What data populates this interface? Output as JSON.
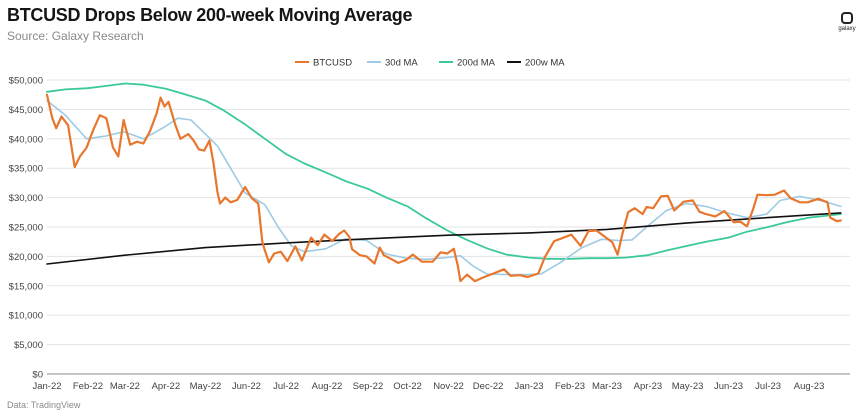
{
  "header": {
    "title": "BTCUSD Drops Below 200-week Moving Average",
    "subtitle": "Source: Galaxy Research",
    "logo_text": "galaxy"
  },
  "footer": {
    "source": "Data: TradingView"
  },
  "chart_data": {
    "type": "line",
    "title": "BTCUSD Drops Below 200-week Moving Average",
    "xlabel": "",
    "ylabel": "",
    "ylim": [
      0,
      50000
    ],
    "grid": true,
    "legend_placement": "top-center",
    "x_tick_labels": [
      "Jan-22",
      "Feb-22",
      "Mar-22",
      "Apr-22",
      "May-22",
      "Jun-22",
      "Jul-22",
      "Aug-22",
      "Sep-22",
      "Oct-22",
      "Nov-22",
      "Dec-22",
      "Jan-23",
      "Feb-23",
      "Mar-23",
      "Apr-23",
      "May-23",
      "Jun-23",
      "Jul-23",
      "Aug-23"
    ],
    "y_tick_labels": [
      "$0",
      "$5,000",
      "$10,000",
      "$15,000",
      "$20,000",
      "$25,000",
      "$30,000",
      "$35,000",
      "$40,000",
      "$45,000",
      "$50,000"
    ],
    "y_ticks": [
      0,
      5000,
      10000,
      15000,
      20000,
      25000,
      30000,
      35000,
      40000,
      45000,
      50000
    ],
    "series": [
      {
        "name": "BTCUSD",
        "color": "#e8762d",
        "width": 2.2,
        "points": [
          [
            "2022-01-01",
            47500
          ],
          [
            "2022-01-05",
            43500
          ],
          [
            "2022-01-08",
            41800
          ],
          [
            "2022-01-12",
            43800
          ],
          [
            "2022-01-17",
            42300
          ],
          [
            "2022-01-22",
            35200
          ],
          [
            "2022-01-26",
            37000
          ],
          [
            "2022-01-31",
            38500
          ],
          [
            "2022-02-05",
            41500
          ],
          [
            "2022-02-10",
            44000
          ],
          [
            "2022-02-15",
            43500
          ],
          [
            "2022-02-20",
            38500
          ],
          [
            "2022-02-24",
            37000
          ],
          [
            "2022-02-28",
            43200
          ],
          [
            "2022-03-05",
            39000
          ],
          [
            "2022-03-10",
            39500
          ],
          [
            "2022-03-15",
            39200
          ],
          [
            "2022-03-20",
            41300
          ],
          [
            "2022-03-25",
            44300
          ],
          [
            "2022-03-28",
            47000
          ],
          [
            "2022-03-31",
            45500
          ],
          [
            "2022-04-03",
            46300
          ],
          [
            "2022-04-08",
            42500
          ],
          [
            "2022-04-12",
            40000
          ],
          [
            "2022-04-18",
            40800
          ],
          [
            "2022-04-22",
            39700
          ],
          [
            "2022-04-26",
            38200
          ],
          [
            "2022-04-30",
            38000
          ],
          [
            "2022-05-04",
            39700
          ],
          [
            "2022-05-07",
            36000
          ],
          [
            "2022-05-10",
            31000
          ],
          [
            "2022-05-12",
            29000
          ],
          [
            "2022-05-16",
            30000
          ],
          [
            "2022-05-20",
            29200
          ],
          [
            "2022-05-25",
            29600
          ],
          [
            "2022-05-31",
            31800
          ],
          [
            "2022-06-05",
            29900
          ],
          [
            "2022-06-10",
            29000
          ],
          [
            "2022-06-13",
            22500
          ],
          [
            "2022-06-15",
            21000
          ],
          [
            "2022-06-18",
            19000
          ],
          [
            "2022-06-22",
            20500
          ],
          [
            "2022-06-27",
            20800
          ],
          [
            "2022-07-02",
            19200
          ],
          [
            "2022-07-08",
            21700
          ],
          [
            "2022-07-13",
            19300
          ],
          [
            "2022-07-20",
            23200
          ],
          [
            "2022-07-25",
            21900
          ],
          [
            "2022-07-30",
            23700
          ],
          [
            "2022-08-05",
            22600
          ],
          [
            "2022-08-10",
            23800
          ],
          [
            "2022-08-14",
            24400
          ],
          [
            "2022-08-18",
            23300
          ],
          [
            "2022-08-20",
            21200
          ],
          [
            "2022-08-26",
            20200
          ],
          [
            "2022-08-31",
            20000
          ],
          [
            "2022-09-06",
            18800
          ],
          [
            "2022-09-10",
            21500
          ],
          [
            "2022-09-13",
            20200
          ],
          [
            "2022-09-19",
            19500
          ],
          [
            "2022-09-24",
            18900
          ],
          [
            "2022-09-30",
            19400
          ],
          [
            "2022-10-05",
            20300
          ],
          [
            "2022-10-12",
            19100
          ],
          [
            "2022-10-20",
            19100
          ],
          [
            "2022-10-26",
            20700
          ],
          [
            "2022-10-31",
            20500
          ],
          [
            "2022-11-05",
            21300
          ],
          [
            "2022-11-08",
            18500
          ],
          [
            "2022-11-10",
            15800
          ],
          [
            "2022-11-15",
            16900
          ],
          [
            "2022-11-21",
            15800
          ],
          [
            "2022-11-27",
            16400
          ],
          [
            "2022-12-05",
            17100
          ],
          [
            "2022-12-13",
            17800
          ],
          [
            "2022-12-18",
            16700
          ],
          [
            "2022-12-25",
            16800
          ],
          [
            "2022-12-31",
            16500
          ],
          [
            "2023-01-08",
            17100
          ],
          [
            "2023-01-13",
            19900
          ],
          [
            "2023-01-20",
            22600
          ],
          [
            "2023-01-26",
            23100
          ],
          [
            "2023-02-02",
            23700
          ],
          [
            "2023-02-09",
            21800
          ],
          [
            "2023-02-15",
            24300
          ],
          [
            "2023-02-21",
            24400
          ],
          [
            "2023-02-27",
            23400
          ],
          [
            "2023-03-05",
            22400
          ],
          [
            "2023-03-09",
            20300
          ],
          [
            "2023-03-13",
            24100
          ],
          [
            "2023-03-17",
            27500
          ],
          [
            "2023-03-22",
            28200
          ],
          [
            "2023-03-28",
            27200
          ],
          [
            "2023-03-31",
            28400
          ],
          [
            "2023-04-05",
            28200
          ],
          [
            "2023-04-11",
            30200
          ],
          [
            "2023-04-16",
            30300
          ],
          [
            "2023-04-21",
            27800
          ],
          [
            "2023-04-28",
            29300
          ],
          [
            "2023-05-05",
            29500
          ],
          [
            "2023-05-10",
            27600
          ],
          [
            "2023-05-15",
            27200
          ],
          [
            "2023-05-22",
            26800
          ],
          [
            "2023-05-29",
            27700
          ],
          [
            "2023-06-05",
            25800
          ],
          [
            "2023-06-10",
            25900
          ],
          [
            "2023-06-15",
            25100
          ],
          [
            "2023-06-20",
            28300
          ],
          [
            "2023-06-23",
            30500
          ],
          [
            "2023-06-30",
            30400
          ],
          [
            "2023-07-06",
            30500
          ],
          [
            "2023-07-13",
            31200
          ],
          [
            "2023-07-18",
            29900
          ],
          [
            "2023-07-25",
            29200
          ],
          [
            "2023-07-31",
            29200
          ],
          [
            "2023-08-08",
            29800
          ],
          [
            "2023-08-15",
            29200
          ],
          [
            "2023-08-17",
            26600
          ],
          [
            "2023-08-22",
            26000
          ],
          [
            "2023-08-25",
            26100
          ]
        ]
      },
      {
        "name": "30d MA",
        "color": "#9ecbe4",
        "width": 1.6,
        "points": [
          [
            "2022-01-01",
            46500
          ],
          [
            "2022-01-15",
            44000
          ],
          [
            "2022-01-31",
            40000
          ],
          [
            "2022-02-15",
            40500
          ],
          [
            "2022-02-28",
            41200
          ],
          [
            "2022-03-15",
            40000
          ],
          [
            "2022-03-31",
            42000
          ],
          [
            "2022-04-10",
            43500
          ],
          [
            "2022-04-20",
            43200
          ],
          [
            "2022-04-30",
            41000
          ],
          [
            "2022-05-10",
            38800
          ],
          [
            "2022-05-20",
            35000
          ],
          [
            "2022-05-31",
            30800
          ],
          [
            "2022-06-15",
            28800
          ],
          [
            "2022-06-25",
            25000
          ],
          [
            "2022-07-05",
            21800
          ],
          [
            "2022-07-15",
            20800
          ],
          [
            "2022-07-31",
            21300
          ],
          [
            "2022-08-15",
            23000
          ],
          [
            "2022-08-31",
            22700
          ],
          [
            "2022-09-15",
            20400
          ],
          [
            "2022-09-30",
            19700
          ],
          [
            "2022-10-15",
            19500
          ],
          [
            "2022-10-31",
            19800
          ],
          [
            "2022-11-10",
            20100
          ],
          [
            "2022-11-20",
            18300
          ],
          [
            "2022-11-30",
            17000
          ],
          [
            "2022-12-15",
            16900
          ],
          [
            "2022-12-31",
            16900
          ],
          [
            "2023-01-10",
            17000
          ],
          [
            "2023-01-25",
            19000
          ],
          [
            "2023-02-10",
            21500
          ],
          [
            "2023-02-25",
            22900
          ],
          [
            "2023-03-10",
            22700
          ],
          [
            "2023-03-20",
            22800
          ],
          [
            "2023-03-31",
            25000
          ],
          [
            "2023-04-15",
            27800
          ],
          [
            "2023-04-30",
            29000
          ],
          [
            "2023-05-15",
            28500
          ],
          [
            "2023-05-31",
            27400
          ],
          [
            "2023-06-15",
            26600
          ],
          [
            "2023-06-30",
            27200
          ],
          [
            "2023-07-10",
            29500
          ],
          [
            "2023-07-25",
            30200
          ],
          [
            "2023-08-10",
            29500
          ],
          [
            "2023-08-25",
            28500
          ]
        ]
      },
      {
        "name": "200d MA",
        "color": "#3ac99a",
        "width": 1.8,
        "points": [
          [
            "2022-01-01",
            48000
          ],
          [
            "2022-01-15",
            48400
          ],
          [
            "2022-02-01",
            48600
          ],
          [
            "2022-02-15",
            49000
          ],
          [
            "2022-03-01",
            49400
          ],
          [
            "2022-03-15",
            49200
          ],
          [
            "2022-04-01",
            48500
          ],
          [
            "2022-04-15",
            47600
          ],
          [
            "2022-05-01",
            46500
          ],
          [
            "2022-05-15",
            44800
          ],
          [
            "2022-06-01",
            42300
          ],
          [
            "2022-06-15",
            40000
          ],
          [
            "2022-07-01",
            37400
          ],
          [
            "2022-07-15",
            35800
          ],
          [
            "2022-08-01",
            34200
          ],
          [
            "2022-08-15",
            32800
          ],
          [
            "2022-09-01",
            31500
          ],
          [
            "2022-09-15",
            30000
          ],
          [
            "2022-10-01",
            28500
          ],
          [
            "2022-10-15",
            26500
          ],
          [
            "2022-11-01",
            24300
          ],
          [
            "2022-11-15",
            22800
          ],
          [
            "2022-12-01",
            21300
          ],
          [
            "2022-12-15",
            20300
          ],
          [
            "2023-01-01",
            19800
          ],
          [
            "2023-01-15",
            19600
          ],
          [
            "2023-02-01",
            19600
          ],
          [
            "2023-02-15",
            19700
          ],
          [
            "2023-03-01",
            19700
          ],
          [
            "2023-03-15",
            19800
          ],
          [
            "2023-04-01",
            20200
          ],
          [
            "2023-04-15",
            21000
          ],
          [
            "2023-05-01",
            21800
          ],
          [
            "2023-05-15",
            22500
          ],
          [
            "2023-06-01",
            23200
          ],
          [
            "2023-06-15",
            24200
          ],
          [
            "2023-07-01",
            25000
          ],
          [
            "2023-07-15",
            25800
          ],
          [
            "2023-08-01",
            26600
          ],
          [
            "2023-08-25",
            27200
          ]
        ]
      },
      {
        "name": "200w MA",
        "color": "#111111",
        "width": 1.6,
        "points": [
          [
            "2022-01-01",
            18700
          ],
          [
            "2022-03-01",
            20200
          ],
          [
            "2022-05-01",
            21500
          ],
          [
            "2022-07-01",
            22300
          ],
          [
            "2022-09-01",
            23000
          ],
          [
            "2022-11-01",
            23600
          ],
          [
            "2023-01-01",
            24000
          ],
          [
            "2023-03-01",
            24600
          ],
          [
            "2023-05-01",
            25700
          ],
          [
            "2023-07-01",
            26600
          ],
          [
            "2023-08-25",
            27400
          ]
        ]
      }
    ]
  }
}
